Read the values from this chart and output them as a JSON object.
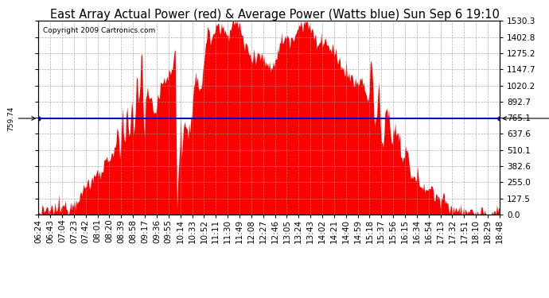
{
  "title": "East Array Actual Power (red) & Average Power (Watts blue) Sun Sep 6 19:10",
  "copyright": "Copyright 2009 Cartronics.com",
  "avg_power": 759.74,
  "y_max": 1530.3,
  "y_ticks": [
    0.0,
    127.5,
    255.0,
    382.6,
    510.1,
    637.6,
    765.1,
    892.7,
    1020.2,
    1147.7,
    1275.2,
    1402.8,
    1530.3
  ],
  "x_labels": [
    "06:24",
    "06:43",
    "07:04",
    "07:23",
    "07:42",
    "08:01",
    "08:20",
    "08:39",
    "08:58",
    "09:17",
    "09:36",
    "09:55",
    "10:14",
    "10:33",
    "10:52",
    "11:11",
    "11:30",
    "11:49",
    "12:08",
    "12:27",
    "12:46",
    "13:05",
    "13:24",
    "13:43",
    "14:02",
    "14:21",
    "14:40",
    "14:59",
    "15:18",
    "15:37",
    "15:56",
    "16:15",
    "16:34",
    "16:54",
    "17:13",
    "17:32",
    "17:51",
    "18:10",
    "18:29",
    "18:48"
  ],
  "fill_color": "#FF0000",
  "line_color": "#0000CC",
  "bg_color": "#FFFFFF",
  "plot_bg_color": "#FFFFFF",
  "grid_color": "#999999",
  "title_fontsize": 10.5,
  "copyright_fontsize": 6.5,
  "tick_fontsize": 7.5,
  "label_fontsize": 6.5
}
